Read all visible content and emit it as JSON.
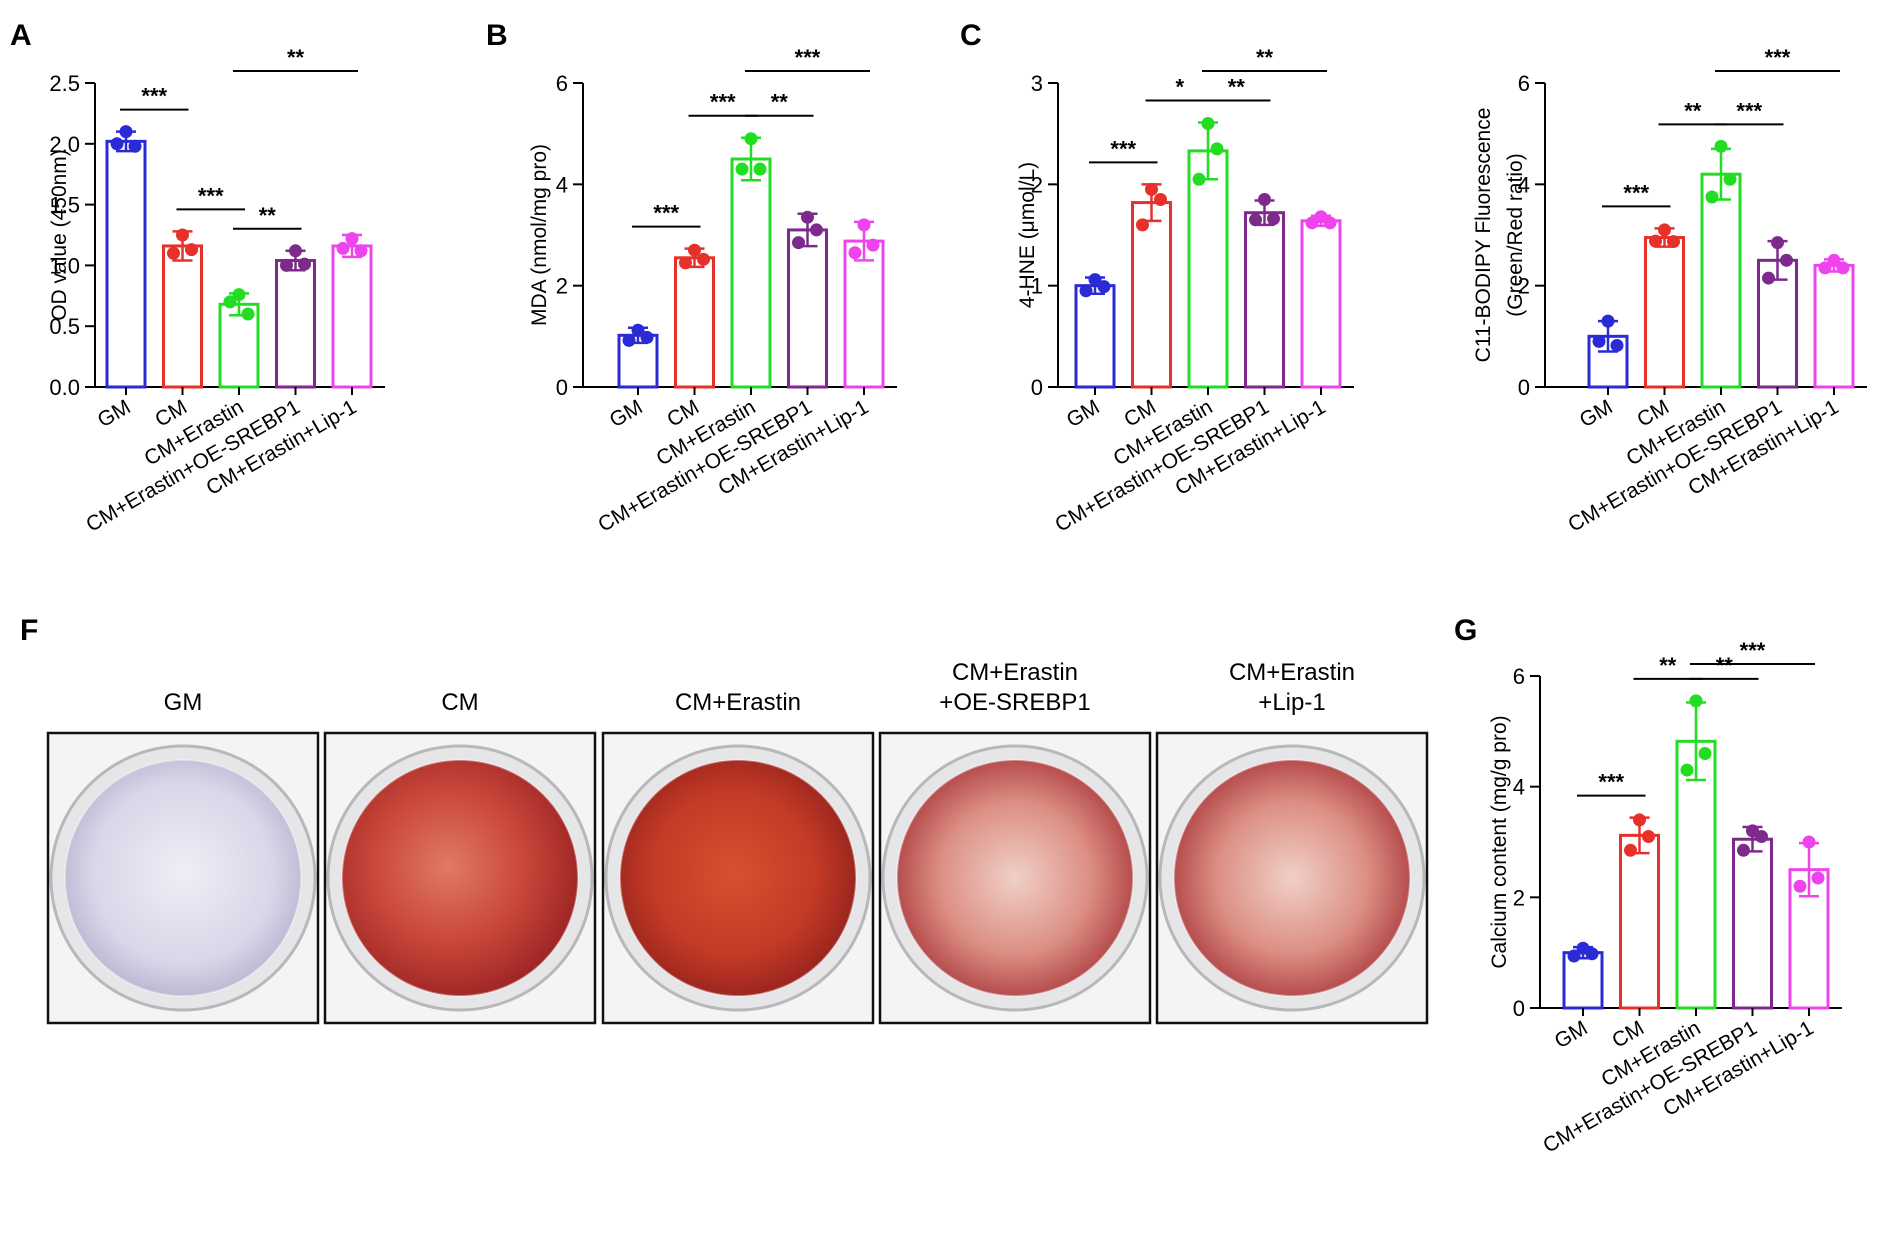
{
  "figure": {
    "panel_letters": [
      "A",
      "B",
      "C",
      "F",
      "G"
    ],
    "staining": {
      "letter": "F",
      "wells": [
        {
          "title": [
            "GM"
          ],
          "stain": "purple"
        },
        {
          "title": [
            "CM"
          ],
          "stain": "red"
        },
        {
          "title": [
            "CM+Erastin"
          ],
          "stain": "red-dark"
        },
        {
          "title": [
            "CM+Erastin",
            "+OE-SREBP1"
          ],
          "stain": "red-light"
        },
        {
          "title": [
            "CM+Erastin",
            "+Lip-1"
          ],
          "stain": "red-light"
        }
      ]
    }
  },
  "colors": {
    "GM": "#2b2bd6",
    "CM": "#e8302b",
    "CM+Erastin": "#22dd22",
    "CM+Erastin+OE-SREBP1": "#7d2a8c",
    "CM+Erastin+Lip-1": "#ee44ee"
  },
  "chart_data": [
    {
      "type": "bar",
      "panel": "A",
      "categories": [
        "GM",
        "CM",
        "CM+Erastin",
        "CM+Erastin+OE-SREBP1",
        "CM+Erastin+Lip-1"
      ],
      "values": [
        2.02,
        1.16,
        0.68,
        1.04,
        1.16
      ],
      "errors": [
        0.08,
        0.12,
        0.09,
        0.08,
        0.09
      ],
      "points": [
        [
          2.1,
          2.0,
          1.98
        ],
        [
          1.25,
          1.1,
          1.13
        ],
        [
          0.76,
          0.7,
          0.6
        ],
        [
          1.12,
          1.0,
          1.01
        ],
        [
          1.22,
          1.14,
          1.12
        ]
      ],
      "ylabel": "OD value (450nm)",
      "ylim": [
        0,
        2.5
      ],
      "yticks": [
        "0.0",
        "0.5",
        "1.0",
        "1.5",
        "2.0",
        "2.5"
      ],
      "significance": [
        {
          "from": 0,
          "to": 1,
          "label": "***"
        },
        {
          "from": 1,
          "to": 2,
          "label": "***"
        },
        {
          "from": 2,
          "to": 3,
          "label": "**"
        },
        {
          "from": 2,
          "to": 4,
          "label": "**"
        }
      ]
    },
    {
      "type": "bar",
      "panel": "B",
      "categories": [
        "GM",
        "CM",
        "CM+Erastin",
        "CM+Erastin+OE-SREBP1",
        "CM+Erastin+Lip-1"
      ],
      "values": [
        1.02,
        2.55,
        4.5,
        3.1,
        2.88
      ],
      "errors": [
        0.15,
        0.18,
        0.42,
        0.32,
        0.38
      ],
      "points": [
        [
          1.12,
          0.92,
          0.98
        ],
        [
          2.7,
          2.45,
          2.52
        ],
        [
          4.9,
          4.3,
          4.3
        ],
        [
          3.35,
          2.85,
          3.1
        ],
        [
          3.2,
          2.65,
          2.8
        ]
      ],
      "ylabel": "MDA (nmol/mg pro)",
      "ylim": [
        0,
        6
      ],
      "yticks": [
        "0",
        "2",
        "4",
        "6"
      ],
      "significance": [
        {
          "from": 0,
          "to": 1,
          "label": "***"
        },
        {
          "from": 1,
          "to": 2,
          "label": "***"
        },
        {
          "from": 2,
          "to": 3,
          "label": "**"
        },
        {
          "from": 2,
          "to": 4,
          "label": "***"
        }
      ]
    },
    {
      "type": "bar",
      "panel": "C",
      "categories": [
        "GM",
        "CM",
        "CM+Erastin",
        "CM+Erastin+OE-SREBP1",
        "CM+Erastin+Lip-1"
      ],
      "values": [
        1.0,
        1.82,
        2.33,
        1.72,
        1.64
      ],
      "errors": [
        0.08,
        0.18,
        0.28,
        0.12,
        0.05
      ],
      "points": [
        [
          1.06,
          0.95,
          0.99
        ],
        [
          1.95,
          1.6,
          1.85
        ],
        [
          2.6,
          2.05,
          2.35
        ],
        [
          1.85,
          1.65,
          1.66
        ],
        [
          1.68,
          1.62,
          1.62
        ]
      ],
      "ylabel": "4-HNE (μmol/L)",
      "ylim": [
        0,
        3
      ],
      "yticks": [
        "0",
        "1",
        "2",
        "3"
      ],
      "significance": [
        {
          "from": 0,
          "to": 1,
          "label": "***"
        },
        {
          "from": 1,
          "to": 2,
          "label": "*"
        },
        {
          "from": 2,
          "to": 3,
          "label": "**"
        },
        {
          "from": 2,
          "to": 4,
          "label": "**"
        }
      ]
    },
    {
      "type": "bar",
      "panel": "",
      "categories": [
        "GM",
        "CM",
        "CM+Erastin",
        "CM+Erastin+OE-SREBP1",
        "CM+Erastin+Lip-1"
      ],
      "values": [
        1.0,
        2.95,
        4.2,
        2.5,
        2.4
      ],
      "errors": [
        0.3,
        0.18,
        0.5,
        0.38,
        0.12
      ],
      "points": [
        [
          1.3,
          0.9,
          0.82
        ],
        [
          3.1,
          2.88,
          2.87
        ],
        [
          4.75,
          3.75,
          4.1
        ],
        [
          2.85,
          2.15,
          2.5
        ],
        [
          2.5,
          2.35,
          2.35
        ]
      ],
      "ylabel": "C11-BODIPY Fluorescence",
      "ylabel2": "(Green/Red ratio)",
      "ylim": [
        0,
        6
      ],
      "yticks": [
        "0",
        "2",
        "4",
        "6"
      ],
      "significance": [
        {
          "from": 0,
          "to": 1,
          "label": "***"
        },
        {
          "from": 1,
          "to": 2,
          "label": "**"
        },
        {
          "from": 2,
          "to": 3,
          "label": "***"
        },
        {
          "from": 2,
          "to": 4,
          "label": "***"
        }
      ]
    },
    {
      "type": "bar",
      "panel": "G",
      "categories": [
        "GM",
        "CM",
        "CM+Erastin",
        "CM+Erastin+OE-SREBP1",
        "CM+Erastin+Lip-1"
      ],
      "values": [
        1.0,
        3.12,
        4.82,
        3.05,
        2.5
      ],
      "errors": [
        0.1,
        0.32,
        0.7,
        0.22,
        0.48
      ],
      "points": [
        [
          1.08,
          0.94,
          0.98
        ],
        [
          3.4,
          2.85,
          3.1
        ],
        [
          5.55,
          4.3,
          4.6
        ],
        [
          3.2,
          2.85,
          3.1
        ],
        [
          3.0,
          2.2,
          2.35
        ]
      ],
      "ylabel": "Calcium content (mg/g pro)",
      "ylim": [
        0,
        6
      ],
      "yticks": [
        "0",
        "2",
        "4",
        "6"
      ],
      "significance": [
        {
          "from": 0,
          "to": 1,
          "label": "***"
        },
        {
          "from": 1,
          "to": 2,
          "label": "**"
        },
        {
          "from": 2,
          "to": 3,
          "label": "**"
        },
        {
          "from": 2,
          "to": 4,
          "label": "***"
        }
      ]
    }
  ]
}
